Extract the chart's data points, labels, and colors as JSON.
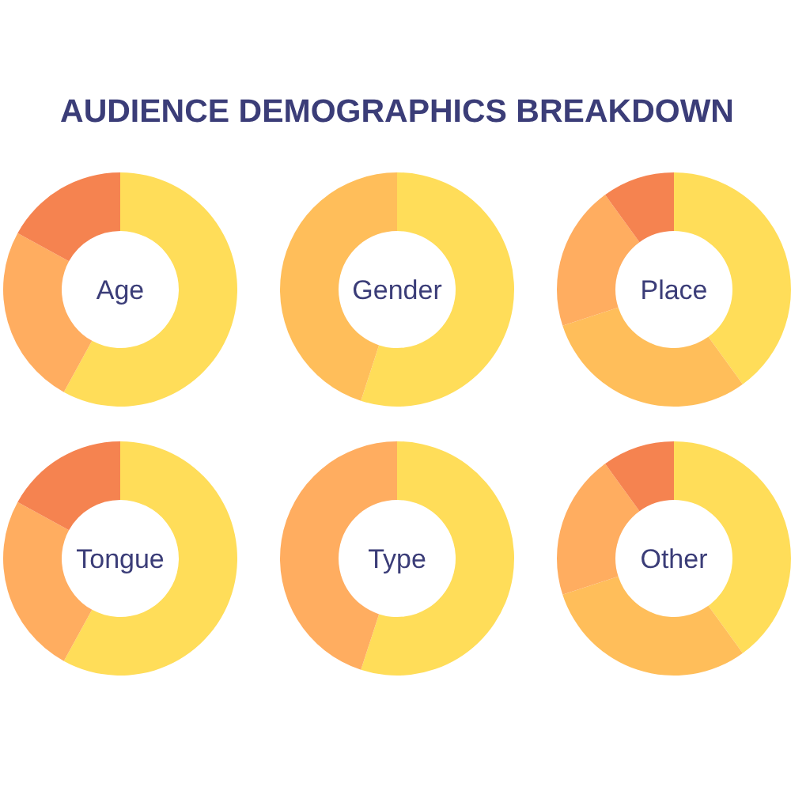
{
  "chart_data": [
    {
      "type": "donut",
      "title": "Age",
      "annotations": [
        "AUDIENCE DEMOGRAPHICS BREAKDOWN"
      ],
      "categories": [
        null,
        null,
        null
      ],
      "values": [
        58,
        25,
        17
      ],
      "colors": [
        "#ffdd59",
        "#ffad60",
        "#f58350"
      ]
    },
    {
      "type": "donut",
      "title": "Gender",
      "categories": [
        null,
        null
      ],
      "values": [
        55,
        45
      ],
      "colors": [
        "#ffdd59",
        "#ffbe5a"
      ]
    },
    {
      "type": "donut",
      "title": "Place",
      "categories": [
        null,
        null,
        null,
        null
      ],
      "values": [
        40,
        30,
        20,
        10
      ],
      "colors": [
        "#ffdd59",
        "#ffbe5a",
        "#ffad60",
        "#f58350"
      ]
    },
    {
      "type": "donut",
      "title": "Tongue",
      "categories": [
        null,
        null,
        null
      ],
      "values": [
        58,
        25,
        17
      ],
      "colors": [
        "#ffdd59",
        "#ffad60",
        "#f58350"
      ]
    },
    {
      "type": "donut",
      "title": "Type",
      "categories": [
        null,
        null
      ],
      "values": [
        55,
        45
      ],
      "colors": [
        "#ffdd59",
        "#ffad60"
      ]
    },
    {
      "type": "donut",
      "title": "Other",
      "categories": [
        null,
        null,
        null,
        null
      ],
      "values": [
        40,
        30,
        20,
        10
      ],
      "colors": [
        "#ffdd59",
        "#ffbe5a",
        "#ffad60",
        "#f58350"
      ]
    }
  ]
}
